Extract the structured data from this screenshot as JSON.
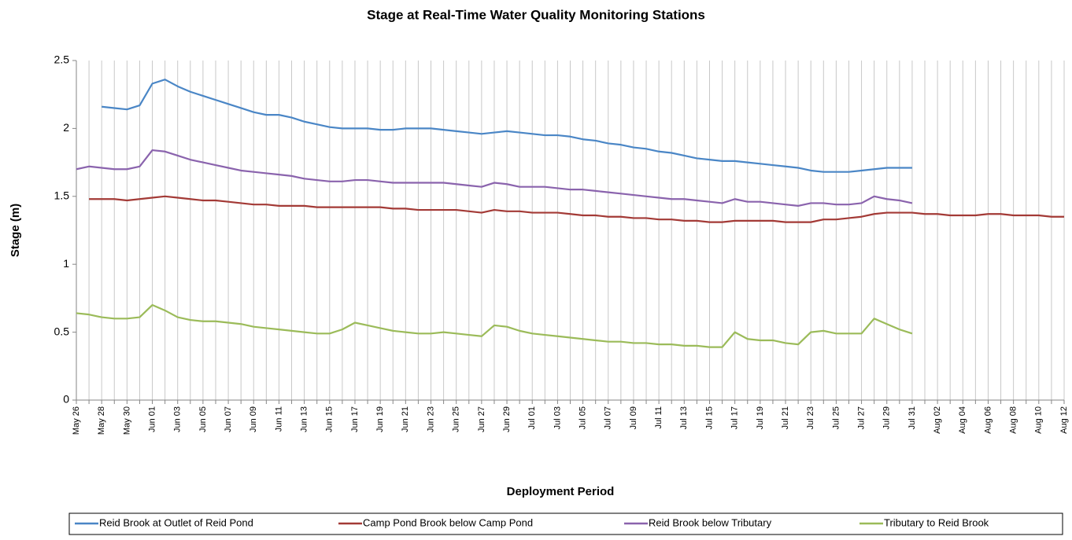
{
  "chart_data": {
    "type": "line",
    "title": "Stage at Real-Time Water Quality Monitoring Stations",
    "x_label": "Deployment Period",
    "y_label": "Stage (m)",
    "categories": [
      "May 26",
      null,
      "May 28",
      null,
      "May 30",
      null,
      "Jun 01",
      null,
      "Jun 03",
      null,
      "Jun 05",
      null,
      "Jun 07",
      null,
      "Jun 09",
      null,
      "Jun 11",
      null,
      "Jun 13",
      null,
      "Jun 15",
      null,
      "Jun 17",
      null,
      "Jun 19",
      null,
      "Jun 21",
      null,
      "Jun 23",
      null,
      "Jun 25",
      null,
      "Jun 27",
      null,
      "Jun 29",
      null,
      "Jul 01",
      null,
      "Jul 03",
      null,
      "Jul 05",
      null,
      "Jul 07",
      null,
      "Jul 09",
      null,
      "Jul 11",
      null,
      "Jul 13",
      null,
      "Jul 15",
      null,
      "Jul 17",
      null,
      "Jul 19",
      null,
      "Jul 21",
      null,
      "Jul 23",
      null,
      "Jul 25",
      null,
      "Jul 27",
      null,
      "Jul 29",
      null,
      "Jul 31",
      null,
      "Aug 02",
      null,
      "Aug 04",
      null,
      "Aug 06",
      null,
      "Aug 08",
      null,
      "Aug 10",
      null,
      "Aug 12"
    ],
    "series": [
      {
        "name": "Reid Brook at Outlet of Reid Pond",
        "color": "#4a86c6",
        "values": [
          null,
          null,
          2.16,
          2.15,
          2.14,
          2.17,
          2.33,
          2.36,
          2.31,
          2.27,
          2.24,
          2.21,
          2.18,
          2.15,
          2.12,
          2.1,
          2.1,
          2.08,
          2.05,
          2.03,
          2.01,
          2.0,
          2.0,
          2.0,
          1.99,
          1.99,
          2.0,
          2.0,
          2.0,
          1.99,
          1.98,
          1.97,
          1.96,
          1.97,
          1.98,
          1.97,
          1.96,
          1.95,
          1.95,
          1.94,
          1.92,
          1.91,
          1.89,
          1.88,
          1.86,
          1.85,
          1.83,
          1.82,
          1.8,
          1.78,
          1.77,
          1.76,
          1.76,
          1.75,
          1.74,
          1.73,
          1.72,
          1.71,
          1.69,
          1.68,
          1.68,
          1.68,
          1.69,
          1.7,
          1.71,
          1.71,
          1.71,
          null,
          null,
          null,
          null,
          null,
          null,
          null,
          null,
          null,
          null,
          null,
          null
        ]
      },
      {
        "name": "Camp Pond Brook below Camp Pond",
        "color": "#a33a36",
        "values": [
          null,
          1.48,
          1.48,
          1.48,
          1.47,
          1.48,
          1.49,
          1.5,
          1.49,
          1.48,
          1.47,
          1.47,
          1.46,
          1.45,
          1.44,
          1.44,
          1.43,
          1.43,
          1.43,
          1.42,
          1.42,
          1.42,
          1.42,
          1.42,
          1.42,
          1.41,
          1.41,
          1.4,
          1.4,
          1.4,
          1.4,
          1.39,
          1.38,
          1.4,
          1.39,
          1.39,
          1.38,
          1.38,
          1.38,
          1.37,
          1.36,
          1.36,
          1.35,
          1.35,
          1.34,
          1.34,
          1.33,
          1.33,
          1.32,
          1.32,
          1.31,
          1.31,
          1.32,
          1.32,
          1.32,
          1.32,
          1.31,
          1.31,
          1.31,
          1.33,
          1.33,
          1.34,
          1.35,
          1.37,
          1.38,
          1.38,
          1.38,
          1.37,
          1.37,
          1.36,
          1.36,
          1.36,
          1.37,
          1.37,
          1.36,
          1.36,
          1.36,
          1.35,
          1.35
        ]
      },
      {
        "name": "Reid Brook below Tributary",
        "color": "#8a63ad",
        "values": [
          1.7,
          1.72,
          1.71,
          1.7,
          1.7,
          1.72,
          1.84,
          1.83,
          1.8,
          1.77,
          1.75,
          1.73,
          1.71,
          1.69,
          1.68,
          1.67,
          1.66,
          1.65,
          1.63,
          1.62,
          1.61,
          1.61,
          1.62,
          1.62,
          1.61,
          1.6,
          1.6,
          1.6,
          1.6,
          1.6,
          1.59,
          1.58,
          1.57,
          1.6,
          1.59,
          1.57,
          1.57,
          1.57,
          1.56,
          1.55,
          1.55,
          1.54,
          1.53,
          1.52,
          1.51,
          1.5,
          1.49,
          1.48,
          1.48,
          1.47,
          1.46,
          1.45,
          1.48,
          1.46,
          1.46,
          1.45,
          1.44,
          1.43,
          1.45,
          1.45,
          1.44,
          1.44,
          1.45,
          1.5,
          1.48,
          1.47,
          1.45,
          null,
          null,
          null,
          null,
          null,
          null,
          null,
          null,
          null,
          null,
          null,
          null
        ]
      },
      {
        "name": "Tributary to Reid Brook",
        "color": "#9bbb59",
        "values": [
          0.64,
          0.63,
          0.61,
          0.6,
          0.6,
          0.61,
          0.7,
          0.66,
          0.61,
          0.59,
          0.58,
          0.58,
          0.57,
          0.56,
          0.54,
          0.53,
          0.52,
          0.51,
          0.5,
          0.49,
          0.49,
          0.52,
          0.57,
          0.55,
          0.53,
          0.51,
          0.5,
          0.49,
          0.49,
          0.5,
          0.49,
          0.48,
          0.47,
          0.55,
          0.54,
          0.51,
          0.49,
          0.48,
          0.47,
          0.46,
          0.45,
          0.44,
          0.43,
          0.43,
          0.42,
          0.42,
          0.41,
          0.41,
          0.4,
          0.4,
          0.39,
          0.39,
          0.5,
          0.45,
          0.44,
          0.44,
          0.42,
          0.41,
          0.5,
          0.51,
          0.49,
          0.49,
          0.49,
          0.6,
          0.56,
          0.52,
          0.49,
          null,
          null,
          null,
          null,
          null,
          null,
          null,
          null,
          null,
          null,
          null,
          null
        ]
      }
    ],
    "ylim": [
      0,
      2.5
    ],
    "yticks": [
      0,
      0.5,
      1,
      1.5,
      2,
      2.5
    ],
    "grid": true,
    "legend": "bottom"
  }
}
